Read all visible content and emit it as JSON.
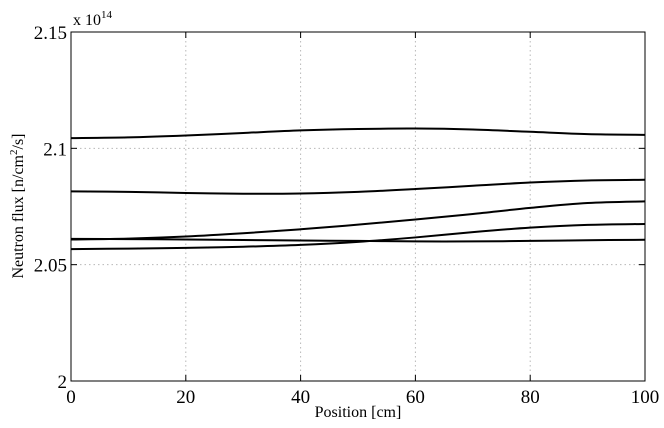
{
  "chart_data": {
    "type": "line",
    "title": "",
    "xlabel": "Position [cm]",
    "ylabel": "Neutron flux [n/cm",
    "ylabel_sup": "2",
    "ylabel_tail": "/s]",
    "y_multiplier_base": "x 10",
    "y_multiplier_exp": "14",
    "xlim": [
      0,
      100
    ],
    "ylim": [
      2.0,
      2.15
    ],
    "x_ticks": [
      0,
      20,
      40,
      60,
      80,
      100
    ],
    "x_tick_labels": [
      "0",
      "20",
      "40",
      "60",
      "80",
      "100"
    ],
    "y_ticks": [
      2.0,
      2.05,
      2.1,
      2.15
    ],
    "y_tick_labels": [
      "2",
      "2.05",
      "2.1",
      "2.15"
    ],
    "grid": true,
    "series_color": "#000000",
    "series": [
      {
        "x": [
          0,
          10,
          20,
          30,
          40,
          50,
          60,
          70,
          80,
          90,
          100
        ],
        "values": [
          2.1044,
          2.1047,
          2.1055,
          2.1066,
          2.1077,
          2.1083,
          2.1085,
          2.1081,
          2.1071,
          2.1061,
          2.1058
        ]
      },
      {
        "x": [
          0,
          10,
          20,
          30,
          40,
          50,
          60,
          70,
          80,
          90,
          100
        ],
        "values": [
          2.0815,
          2.0813,
          2.0808,
          2.0805,
          2.0806,
          2.0813,
          2.0825,
          2.0839,
          2.0853,
          2.0862,
          2.0865
        ]
      },
      {
        "x": [
          0,
          10,
          20,
          30,
          40,
          50,
          60,
          70,
          80,
          90,
          100
        ],
        "values": [
          2.0608,
          2.0612,
          2.0621,
          2.0635,
          2.0652,
          2.0672,
          2.0694,
          2.0718,
          2.0744,
          2.0765,
          2.0772
        ]
      },
      {
        "x": [
          0,
          10,
          20,
          30,
          40,
          50,
          60,
          70,
          80,
          90,
          100
        ],
        "values": [
          2.0567,
          2.0569,
          2.0572,
          2.0577,
          2.0585,
          2.0598,
          2.0617,
          2.064,
          2.0659,
          2.0671,
          2.0675
        ]
      },
      {
        "x": [
          0,
          10,
          20,
          30,
          40,
          50,
          60,
          70,
          80,
          90,
          100
        ],
        "values": [
          2.0611,
          2.061,
          2.0608,
          2.0606,
          2.0604,
          2.0602,
          2.06,
          2.06,
          2.0602,
          2.0605,
          2.0607
        ]
      }
    ]
  }
}
